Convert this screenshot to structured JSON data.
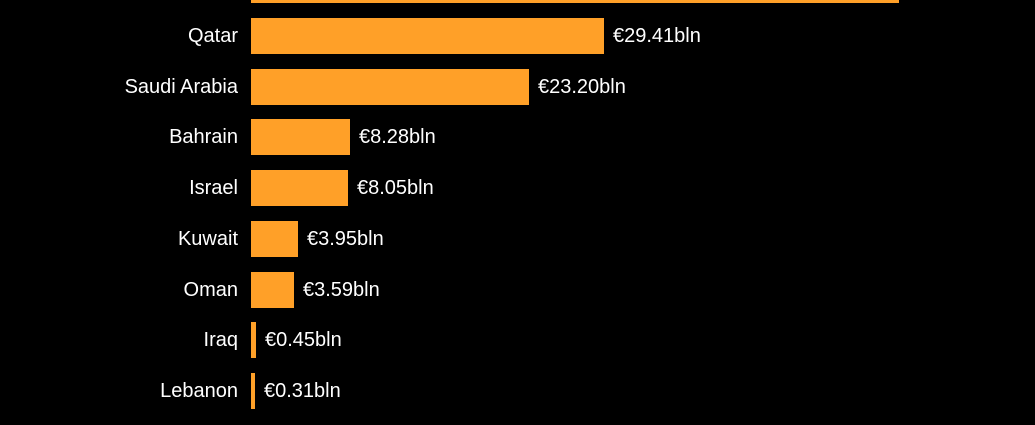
{
  "chart_data": {
    "type": "bar",
    "orientation": "horizontal",
    "title": "",
    "xlabel": "",
    "ylabel": "",
    "unit": "EUR bln",
    "grid": false,
    "legend": false,
    "background_color": "#000000",
    "bar_color": "#FFA028",
    "text_color": "#FFFFFF",
    "categories": [
      "",
      "Qatar",
      "Saudi Arabia",
      "Bahrain",
      "Israel",
      "Kuwait",
      "Oman",
      "Iraq",
      "Lebanon"
    ],
    "values": [
      54.0,
      29.41,
      23.2,
      8.28,
      8.05,
      3.95,
      3.59,
      0.45,
      0.31
    ],
    "bars": [
      {
        "label": "",
        "value": 54.0,
        "value_label": "",
        "cutoff": true
      },
      {
        "label": "Qatar",
        "value": 29.41,
        "value_label": "€29.41bln",
        "cutoff": false
      },
      {
        "label": "Saudi Arabia",
        "value": 23.2,
        "value_label": "€23.20bln",
        "cutoff": false
      },
      {
        "label": "Bahrain",
        "value": 8.28,
        "value_label": "€8.28bln",
        "cutoff": false
      },
      {
        "label": "Israel",
        "value": 8.05,
        "value_label": "€8.05bln",
        "cutoff": false
      },
      {
        "label": "Kuwait",
        "value": 3.95,
        "value_label": "€3.95bln",
        "cutoff": false
      },
      {
        "label": "Oman",
        "value": 3.59,
        "value_label": "€3.59bln",
        "cutoff": false
      },
      {
        "label": "Iraq",
        "value": 0.45,
        "value_label": "€0.45bln",
        "cutoff": false
      },
      {
        "label": "Lebanon",
        "value": 0.31,
        "value_label": "€0.31bln",
        "cutoff": false
      }
    ]
  }
}
